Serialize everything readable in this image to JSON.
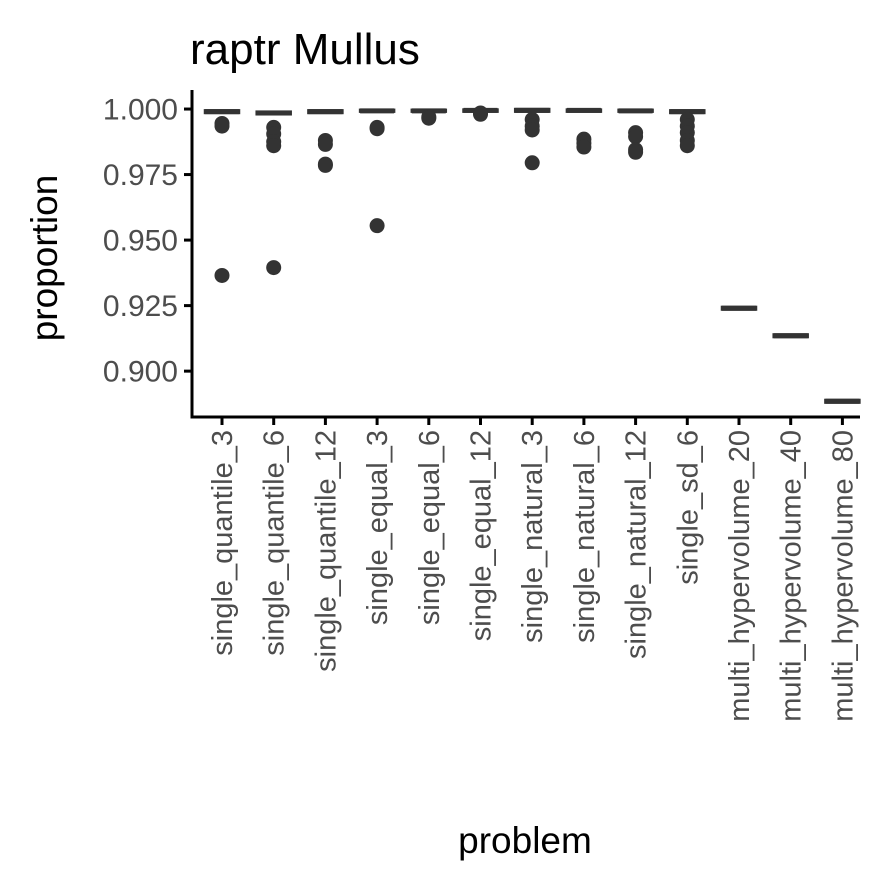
{
  "chart_data": {
    "type": "boxplot",
    "title": "raptr Mullus",
    "xlabel": "problem",
    "ylabel": "proportion",
    "ylim": [
      0.8825,
      1.0065
    ],
    "yticks": [
      0.9,
      0.925,
      0.95,
      0.975,
      1.0
    ],
    "ytick_labels": [
      "0.900",
      "0.925",
      "0.950",
      "0.975",
      "1.000"
    ],
    "grid": false,
    "legend": "none",
    "colors": {
      "box": "#333333",
      "axis": "#000000",
      "tick_text": "#4d4d4d"
    },
    "categories": [
      "single_quantile_3",
      "single_quantile_6",
      "single_quantile_12",
      "single_equal_3",
      "single_equal_6",
      "single_equal_12",
      "single_natural_3",
      "single_natural_6",
      "single_natural_12",
      "single_sd_6",
      "multi_hypervolume_20",
      "multi_hypervolume_40",
      "multi_hypervolume_80"
    ],
    "boxes": [
      {
        "q1": 0.9985,
        "median": 0.999,
        "q3": 0.9995,
        "outliers": [
          0.9945,
          0.9935,
          0.9365
        ]
      },
      {
        "q1": 0.998,
        "median": 0.9985,
        "q3": 0.999,
        "outliers": [
          0.993,
          0.9905,
          0.9875,
          0.986,
          0.9395
        ]
      },
      {
        "q1": 0.9985,
        "median": 0.999,
        "q3": 0.9995,
        "outliers": [
          0.988,
          0.9865,
          0.979,
          0.9785
        ]
      },
      {
        "q1": 0.999,
        "median": 0.9993,
        "q3": 0.9997,
        "outliers": [
          0.993,
          0.9925,
          0.9555
        ]
      },
      {
        "q1": 0.999,
        "median": 0.9993,
        "q3": 0.9997,
        "outliers": [
          0.997,
          0.9965
        ]
      },
      {
        "q1": 0.999,
        "median": 0.9995,
        "q3": 0.9998,
        "outliers": [
          0.9985,
          0.998
        ]
      },
      {
        "q1": 0.999,
        "median": 0.9995,
        "q3": 1.0,
        "outliers": [
          0.996,
          0.9935,
          0.992,
          0.9795
        ]
      },
      {
        "q1": 0.999,
        "median": 0.9995,
        "q3": 0.9998,
        "outliers": [
          0.9885,
          0.987,
          0.9855
        ]
      },
      {
        "q1": 0.999,
        "median": 0.9993,
        "q3": 0.9997,
        "outliers": [
          0.991,
          0.9895,
          0.9845,
          0.9835
        ]
      },
      {
        "q1": 0.9985,
        "median": 0.999,
        "q3": 0.9995,
        "outliers": [
          0.996,
          0.9935,
          0.991,
          0.988,
          0.986
        ]
      },
      {
        "q1": 0.9235,
        "median": 0.924,
        "q3": 0.9245,
        "outliers": []
      },
      {
        "q1": 0.913,
        "median": 0.9135,
        "q3": 0.914,
        "outliers": []
      },
      {
        "q1": 0.888,
        "median": 0.8885,
        "q3": 0.889,
        "outliers": []
      }
    ]
  }
}
